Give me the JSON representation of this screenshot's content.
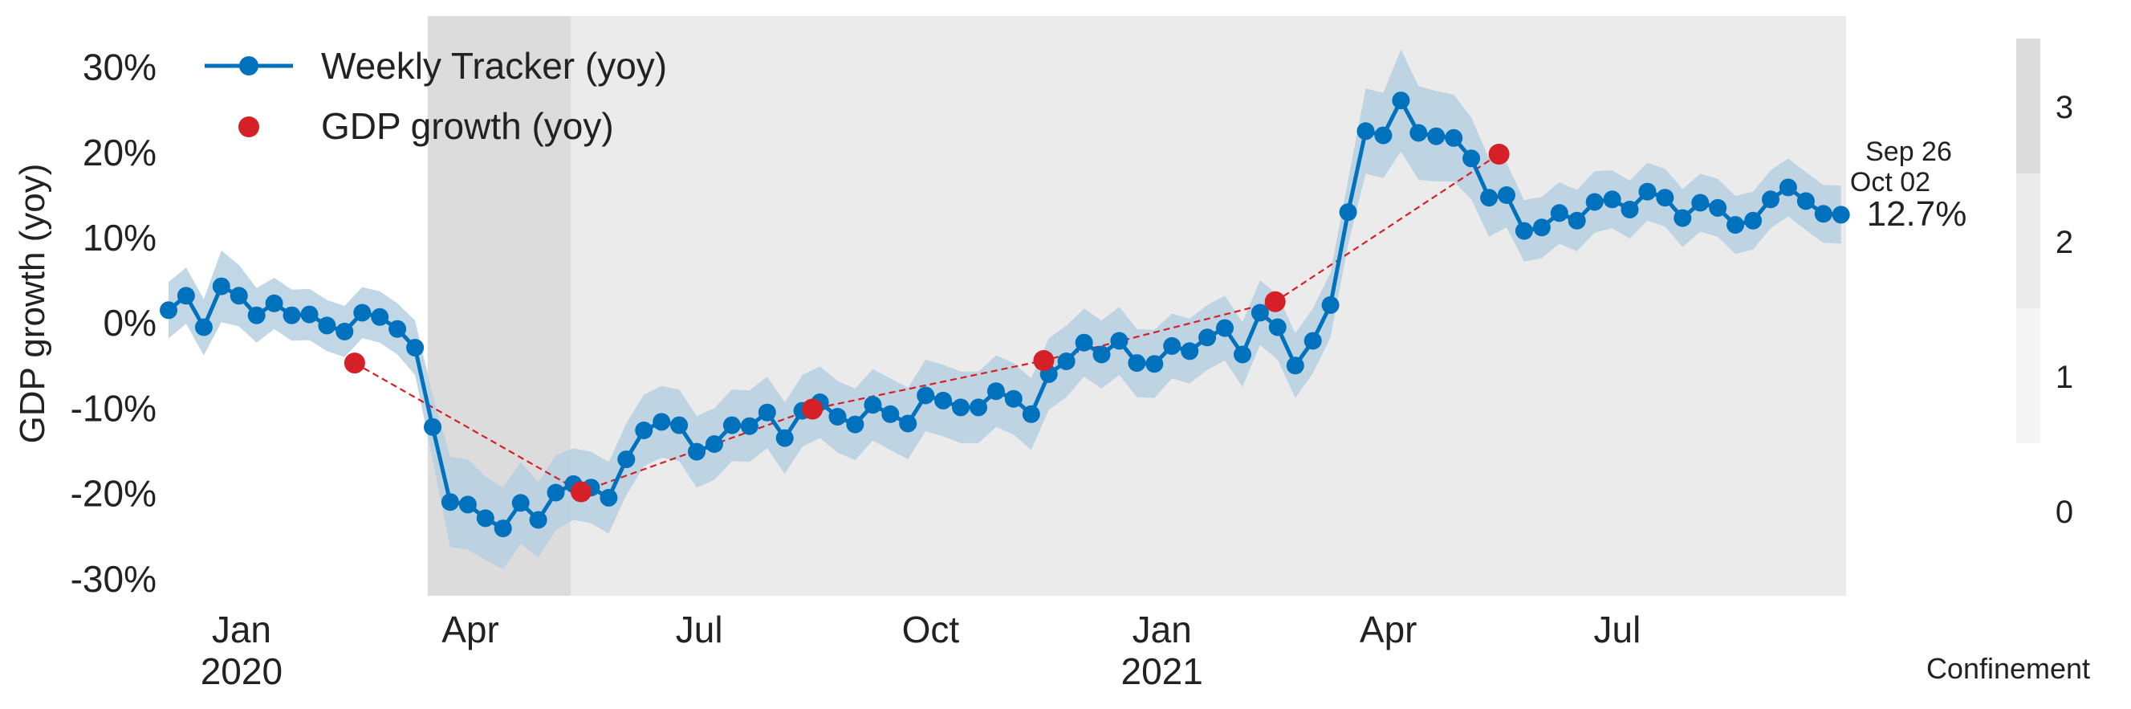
{
  "chart_data": {
    "type": "line",
    "ylabel": "GDP growth (yoy)",
    "ylim": [
      -32,
      36
    ],
    "yticks": [
      -30,
      -20,
      -10,
      0,
      10,
      20,
      30
    ],
    "ytick_labels": [
      "-30%",
      "-20%",
      "-10%",
      "0%",
      "10%",
      "20%",
      "30%"
    ],
    "xlim": [
      "2019-12-03",
      "2021-09-30"
    ],
    "xticks": [
      {
        "date": "2020-01-01",
        "label": "Jan",
        "year": "2020"
      },
      {
        "date": "2020-04-01",
        "label": "Apr",
        "year": ""
      },
      {
        "date": "2020-07-01",
        "label": "Jul",
        "year": ""
      },
      {
        "date": "2020-10-01",
        "label": "Oct",
        "year": ""
      },
      {
        "date": "2021-01-01",
        "label": "Jan",
        "year": "2021"
      },
      {
        "date": "2021-04-01",
        "label": "Apr",
        "year": ""
      },
      {
        "date": "2021-07-01",
        "label": "Jul",
        "year": ""
      }
    ],
    "legend_position": "top-left",
    "series": [
      {
        "name": "Weekly Tracker (yoy)",
        "color": "#0072bd",
        "band_color": "#b7d0e2",
        "start_date": "2019-12-03",
        "step_days": 7,
        "values": [
          1.5,
          3.2,
          -0.5,
          4.3,
          3.2,
          0.9,
          2.3,
          0.9,
          1.0,
          -0.3,
          -1.0,
          1.2,
          0.7,
          -0.7,
          -2.9,
          -12.2,
          -21.0,
          -21.3,
          -22.9,
          -24.1,
          -21.1,
          -23.1,
          -19.9,
          -18.9,
          -19.3,
          -20.5,
          -16.0,
          -12.6,
          -11.6,
          -12.0,
          -15.1,
          -14.2,
          -12.0,
          -12.1,
          -10.5,
          -13.5,
          -10.3,
          -9.3,
          -11.0,
          -11.9,
          -9.6,
          -10.7,
          -11.8,
          -8.5,
          -9.1,
          -9.9,
          -9.9,
          -8.0,
          -8.9,
          -10.7,
          -6.0,
          -4.5,
          -2.3,
          -3.7,
          -2.1,
          -4.7,
          -4.8,
          -2.7,
          -3.3,
          -1.7,
          -0.6,
          -3.7,
          1.2,
          -0.5,
          -5.0,
          -2.1,
          2.1,
          13.0,
          22.5,
          22.0,
          26.1,
          22.3,
          21.9,
          21.7,
          19.3,
          14.7,
          15.0,
          10.8,
          11.2,
          12.9,
          12.0,
          14.2,
          14.5,
          13.3,
          15.4,
          14.7,
          12.3,
          14.1,
          13.5,
          11.5,
          12.0,
          14.5,
          15.9,
          14.3,
          12.8,
          12.7
        ],
        "band_halfwidth": [
          3.3,
          3.3,
          3.3,
          4.2,
          3.6,
          3.2,
          3.0,
          3.0,
          3.0,
          3.0,
          3.0,
          3.0,
          3.0,
          3.0,
          3.2,
          3.8,
          5.3,
          5.3,
          4.9,
          4.8,
          4.8,
          4.4,
          4.4,
          4.2,
          4.2,
          4.2,
          4.2,
          4.2,
          4.2,
          4.2,
          4.2,
          4.2,
          4.2,
          4.2,
          4.2,
          4.2,
          4.2,
          4.2,
          4.2,
          4.2,
          4.2,
          4.2,
          4.2,
          4.2,
          4.2,
          4.2,
          4.2,
          4.2,
          4.2,
          4.2,
          4.2,
          4.2,
          4.0,
          4.0,
          4.0,
          4.0,
          4.0,
          3.8,
          3.8,
          3.8,
          3.8,
          3.8,
          3.8,
          3.8,
          3.8,
          3.8,
          3.8,
          3.8,
          5.0,
          5.0,
          6.0,
          5.5,
          5.3,
          5.1,
          4.8,
          4.6,
          3.8,
          3.6,
          3.6,
          3.6,
          3.6,
          3.6,
          3.4,
          3.4,
          3.4,
          3.4,
          3.4,
          3.4,
          3.4,
          3.4,
          3.4,
          3.4,
          3.4,
          3.4,
          3.4,
          3.4
        ]
      },
      {
        "name": "GDP growth (yoy)",
        "color": "#d62027",
        "points": [
          {
            "date": "2020-02-15",
            "value": -4.7
          },
          {
            "date": "2020-05-15",
            "value": -19.8
          },
          {
            "date": "2020-08-15",
            "value": -10.1
          },
          {
            "date": "2020-11-15",
            "value": -4.4
          },
          {
            "date": "2021-02-15",
            "value": 2.5
          },
          {
            "date": "2021-05-15",
            "value": 19.8
          }
        ]
      }
    ],
    "confinement": {
      "label": "Confinement",
      "levels": [
        "0",
        "1",
        "2",
        "3"
      ],
      "colors": [
        "#ffffff",
        "#f5f5f5",
        "#ebebeb",
        "#dcdcdc"
      ],
      "periods": [
        {
          "start": "2020-03-15",
          "end": "2020-05-11",
          "level": 3
        },
        {
          "start": "2020-05-11",
          "end": "2021-09-30",
          "level": 2
        }
      ]
    },
    "annotation": {
      "date_line1": "Sep 26",
      "date_line2": "Oct 02",
      "value": "12.7%"
    }
  }
}
